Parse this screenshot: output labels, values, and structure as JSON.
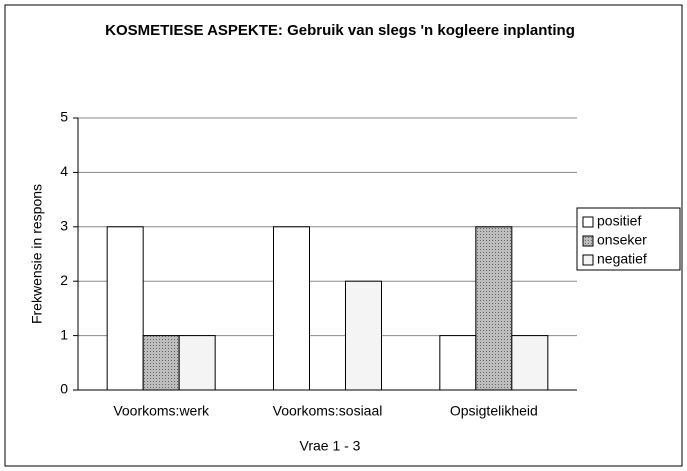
{
  "chart_data": {
    "type": "bar",
    "title": "KOSMETIESE ASPEKTE: Gebruik van slegs 'n kogleere inplanting",
    "x_label": "Vrae 1 - 3",
    "y_label": "Frekwensie in respons",
    "categories": [
      "Voorkoms:werk",
      "Voorkoms:sosiaal",
      "Opsigtelikheid"
    ],
    "series": [
      {
        "name": "positief",
        "color": "#ffffff",
        "values": [
          3,
          3,
          1
        ]
      },
      {
        "name": "onseker",
        "color": "#a9a9a9",
        "values": [
          1,
          0,
          3
        ]
      },
      {
        "name": "negatief",
        "color": "#f4f4f4",
        "values": [
          1,
          2,
          1
        ]
      }
    ],
    "ylim": [
      0,
      5
    ],
    "yticks": [
      0,
      1,
      2,
      3,
      4,
      5
    ],
    "grid": true,
    "legend": "right"
  }
}
